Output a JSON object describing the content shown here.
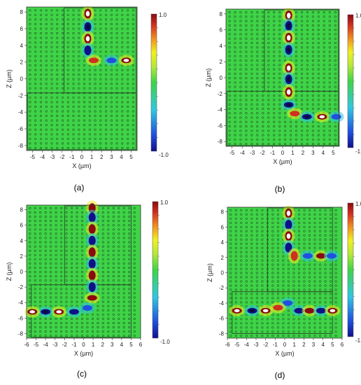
{
  "figure": {
    "panels": [
      "(a)",
      "(b)",
      "(c)",
      "(d)"
    ]
  },
  "colors": {
    "background_field": "#3fd448",
    "hole": "#1a3a1a",
    "frame": "#2b5a2b",
    "colorscale": [
      "#10108a",
      "#2050e0",
      "#30c8e0",
      "#3fd448",
      "#b8e838",
      "#f0f020",
      "#f09020",
      "#d03020",
      "#8a0a10"
    ]
  },
  "chart_data": [
    {
      "type": "heatmap",
      "panel": "(a)",
      "xlabel": "X (µm)",
      "ylabel": "Z (µm)",
      "xticks": [
        -5,
        -4,
        -3,
        -2,
        -1,
        0,
        1,
        2,
        3,
        4,
        5
      ],
      "yticks": [
        8,
        6,
        4,
        2,
        0,
        -2,
        -4,
        -6,
        -8
      ],
      "xlim": [
        -5.6,
        5.6
      ],
      "ylim": [
        -8.6,
        8.6
      ],
      "colorbar": {
        "min": -1.0,
        "max": 1.0,
        "labels": [
          "1.0",
          "-1.0"
        ]
      },
      "frames": [
        {
          "x0": -1.8,
          "x1": 5.5,
          "z0": -1.7,
          "z1": 8.5
        },
        {
          "x0": -5.5,
          "x1": 5.5,
          "z0": -8.5,
          "z1": -1.7
        }
      ],
      "spots": [
        {
          "x": 0.6,
          "z": 7.8,
          "v": 1.0
        },
        {
          "x": 0.6,
          "z": 6.2,
          "v": -1.0
        },
        {
          "x": 0.6,
          "z": 4.8,
          "v": 1.0
        },
        {
          "x": 0.6,
          "z": 3.4,
          "v": -0.9
        },
        {
          "x": 1.2,
          "z": 2.2,
          "v": 0.8
        },
        {
          "x": 3.0,
          "z": 2.2,
          "v": -0.8
        },
        {
          "x": 4.5,
          "z": 2.2,
          "v": 1.0
        }
      ]
    },
    {
      "type": "heatmap",
      "panel": "(b)",
      "xlabel": "X (µm)",
      "ylabel": "Z (µm)",
      "xticks": [
        -5,
        -4,
        -3,
        -2,
        -1,
        0,
        1,
        2,
        3,
        4,
        5
      ],
      "yticks": [
        8,
        6,
        4,
        2,
        0,
        -2,
        -4,
        -6,
        -8
      ],
      "xlim": [
        -5.6,
        5.6
      ],
      "ylim": [
        -8.6,
        8.6
      ],
      "colorbar": {
        "min": -1.0,
        "max": 1.0,
        "labels": [
          "1.0",
          "-1.0"
        ]
      },
      "frames": [
        {
          "x0": -1.8,
          "x1": 5.5,
          "z0": -1.7,
          "z1": 8.5
        },
        {
          "x0": -5.5,
          "x1": 5.5,
          "z0": -8.5,
          "z1": -1.7
        }
      ],
      "spots": [
        {
          "x": 0.6,
          "z": 7.8,
          "v": 1.0
        },
        {
          "x": 0.6,
          "z": 6.5,
          "v": -1.0
        },
        {
          "x": 0.6,
          "z": 5.0,
          "v": 1.0
        },
        {
          "x": 0.6,
          "z": 3.5,
          "v": -1.0
        },
        {
          "x": 0.6,
          "z": 1.2,
          "v": 1.0
        },
        {
          "x": 0.6,
          "z": -0.2,
          "v": -1.0
        },
        {
          "x": 0.6,
          "z": -1.8,
          "v": 1.0
        },
        {
          "x": 0.6,
          "z": -3.4,
          "v": -1.0
        },
        {
          "x": 1.2,
          "z": -4.5,
          "v": 0.8
        },
        {
          "x": 2.4,
          "z": -4.9,
          "v": -1.0
        },
        {
          "x": 3.9,
          "z": -4.9,
          "v": 1.0
        },
        {
          "x": 5.3,
          "z": -4.9,
          "v": -0.8
        }
      ]
    },
    {
      "type": "heatmap",
      "panel": "(c)",
      "xlabel": "X (µm)",
      "ylabel": "Z (µm)",
      "xticks": [
        -6,
        -5,
        -4,
        -3,
        -2,
        -1,
        0,
        1,
        2,
        3,
        4,
        5,
        6
      ],
      "yticks": [
        8,
        6,
        4,
        2,
        0,
        -2,
        -4,
        -6,
        -8
      ],
      "xlim": [
        -6.0,
        6.0
      ],
      "ylim": [
        -8.6,
        8.6
      ],
      "colorbar": {
        "min": -1.0,
        "max": 1.0,
        "labels": [
          "1.0",
          "-1.0"
        ]
      },
      "frames": [
        {
          "x0": -2.0,
          "x1": 5.0,
          "z0": -1.7,
          "z1": 8.5
        },
        {
          "x0": -5.5,
          "x1": 5.0,
          "z0": -8.5,
          "z1": -1.7
        }
      ],
      "spots": [
        {
          "x": 0.9,
          "z": 8.2,
          "v": 0.9
        },
        {
          "x": 0.9,
          "z": 7.0,
          "v": -0.9
        },
        {
          "x": 0.9,
          "z": 5.5,
          "v": 0.9
        },
        {
          "x": 0.9,
          "z": 4.0,
          "v": -0.9
        },
        {
          "x": 0.9,
          "z": 2.5,
          "v": 0.9
        },
        {
          "x": 0.9,
          "z": 1.0,
          "v": -0.9
        },
        {
          "x": 0.9,
          "z": -0.5,
          "v": 0.9
        },
        {
          "x": 0.9,
          "z": -2.0,
          "v": -0.9
        },
        {
          "x": 0.9,
          "z": -3.4,
          "v": 0.9
        },
        {
          "x": 0.4,
          "z": -4.7,
          "v": -0.8
        },
        {
          "x": -1.0,
          "z": -5.2,
          "v": -0.9
        },
        {
          "x": -2.6,
          "z": -5.2,
          "v": 1.0
        },
        {
          "x": -4.0,
          "z": -5.2,
          "v": -1.0
        },
        {
          "x": -5.4,
          "z": -5.2,
          "v": 1.0
        }
      ]
    },
    {
      "type": "heatmap",
      "panel": "(d)",
      "xlabel": "X (µm)",
      "ylabel": "Z (µm)",
      "xticks": [
        -6,
        -5,
        -4,
        -3,
        -2,
        -1,
        0,
        1,
        2,
        3,
        4,
        5,
        6
      ],
      "yticks": [
        8,
        6,
        4,
        2,
        0,
        -2,
        -4,
        -6,
        -8
      ],
      "xlim": [
        -6.0,
        6.0
      ],
      "ylim": [
        -8.6,
        8.6
      ],
      "colorbar": {
        "min": -1.0,
        "max": 1.0,
        "labels": [
          "1.0",
          "-1.0"
        ]
      },
      "frames": [
        {
          "x0": -1.8,
          "x1": 5.0,
          "z0": -2.5,
          "z1": 8.5
        },
        {
          "x0": -5.5,
          "x1": 5.0,
          "z0": -8.0,
          "z1": -2.5
        }
      ],
      "spots": [
        {
          "x": 0.4,
          "z": 7.8,
          "v": 1.0
        },
        {
          "x": 0.4,
          "z": 6.3,
          "v": -0.9
        },
        {
          "x": 0.4,
          "z": 4.8,
          "v": 1.0
        },
        {
          "x": 0.4,
          "z": 3.3,
          "v": -0.9
        },
        {
          "x": 1.0,
          "z": 2.2,
          "v": 0.7
        },
        {
          "x": 2.4,
          "z": 2.2,
          "v": -0.8
        },
        {
          "x": 3.8,
          "z": 2.2,
          "v": 0.9
        },
        {
          "x": 4.9,
          "z": 2.2,
          "v": -0.8
        },
        {
          "x": 0.3,
          "z": -4.0,
          "v": -0.7
        },
        {
          "x": -0.7,
          "z": -4.6,
          "v": 0.7
        },
        {
          "x": -2.0,
          "z": -5.0,
          "v": 1.0
        },
        {
          "x": -3.4,
          "z": -5.0,
          "v": -1.0
        },
        {
          "x": -5.0,
          "z": -5.0,
          "v": 1.0
        },
        {
          "x": 1.5,
          "z": -5.0,
          "v": -0.9
        },
        {
          "x": 2.6,
          "z": -5.0,
          "v": 0.9
        },
        {
          "x": 3.8,
          "z": -5.0,
          "v": -0.9
        },
        {
          "x": 5.0,
          "z": -5.0,
          "v": 1.0
        }
      ]
    }
  ]
}
